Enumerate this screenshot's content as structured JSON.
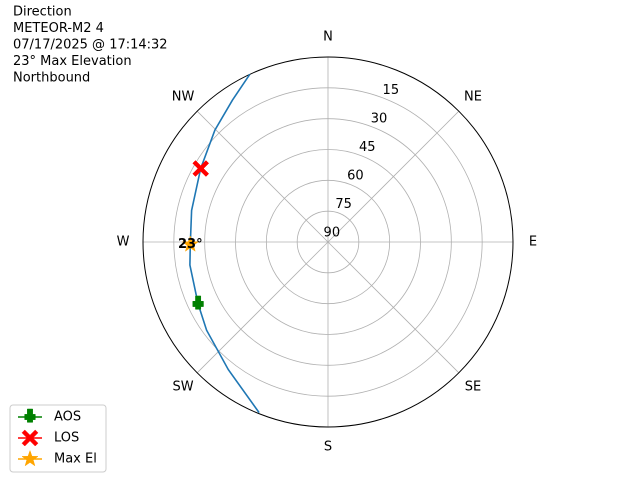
{
  "chart_data": {
    "type": "polar",
    "title": [
      "Direction",
      "METEOR-M2 4",
      "07/17/2025 @ 17:14:32",
      "23° Max Elevation",
      "Northbound"
    ],
    "xticks": [
      {
        "value": 0,
        "label": "N"
      },
      {
        "value": 45,
        "label": "NE"
      },
      {
        "value": 90,
        "label": "E"
      },
      {
        "value": 135,
        "label": "SE"
      },
      {
        "value": 180,
        "label": "S"
      },
      {
        "value": 225,
        "label": "SW"
      },
      {
        "value": 270,
        "label": "W"
      },
      {
        "value": 315,
        "label": "NW"
      }
    ],
    "rlim": [
      90,
      0
    ],
    "rticks": [
      90,
      75,
      60,
      45,
      30,
      15
    ],
    "grid": true,
    "track": {
      "color": "#1f77b4",
      "x": [
        202,
        218,
        234,
        244.5,
        260.5,
        269,
        283,
        300,
        314.7,
        326,
        335
      ],
      "values": [
        0.5,
        11.2,
        17,
        20,
        21.9,
        23,
        21.9,
        18.5,
        12.6,
        6.8,
        0
      ]
    },
    "series": [
      {
        "name": "AOS",
        "color": "green",
        "marker": "plus",
        "x": [
          244.5
        ],
        "values": [
          20
        ]
      },
      {
        "name": "LOS",
        "color": "red",
        "marker": "x",
        "x": [
          300
        ],
        "values": [
          18.5
        ]
      },
      {
        "name": "Max El",
        "color": "orange",
        "marker": "star",
        "x": [
          269
        ],
        "values": [
          23
        ]
      }
    ],
    "annotations": [
      {
        "text": "23°",
        "x": 269,
        "y": 23
      }
    ],
    "legend": "lower left"
  }
}
